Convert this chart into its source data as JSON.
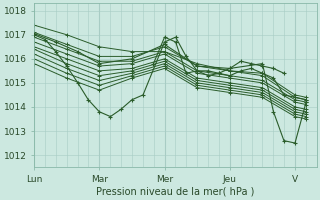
{
  "bg_color": "#cce8e0",
  "grid_color_v": "#a8ccc4",
  "grid_color_h": "#a8ccc4",
  "line_color": "#2a5c2a",
  "xlabel": "Pression niveau de la mer( hPa )",
  "xlim": [
    0,
    4.33
  ],
  "ylim": [
    1011.5,
    1018.3
  ],
  "yticks": [
    1012,
    1013,
    1014,
    1015,
    1016,
    1017,
    1018
  ],
  "xtick_labels": [
    "Lun",
    "Mar",
    "Mer",
    "Jeu",
    "V"
  ],
  "xtick_positions": [
    0,
    1,
    2,
    3,
    4
  ],
  "series": [
    {
      "x": [
        0.0,
        0.5,
        1.0,
        1.5,
        2.0,
        2.5,
        3.0,
        3.5,
        4.0,
        4.17
      ],
      "y": [
        1017.4,
        1017.0,
        1016.5,
        1016.3,
        1016.3,
        1015.8,
        1015.5,
        1015.3,
        1014.4,
        1014.3
      ]
    },
    {
      "x": [
        0.0,
        0.5,
        1.0,
        1.5,
        2.0,
        2.5,
        3.0,
        3.5,
        4.0,
        4.17
      ],
      "y": [
        1017.1,
        1016.6,
        1016.1,
        1016.1,
        1016.5,
        1015.7,
        1015.5,
        1015.4,
        1014.5,
        1014.4
      ]
    },
    {
      "x": [
        0.0,
        0.5,
        1.0,
        1.5,
        2.0,
        2.5,
        3.0,
        3.5,
        4.0,
        4.17
      ],
      "y": [
        1016.9,
        1016.4,
        1015.9,
        1015.9,
        1016.3,
        1015.5,
        1015.3,
        1015.1,
        1014.3,
        1014.2
      ]
    },
    {
      "x": [
        0.0,
        0.5,
        1.0,
        1.5,
        2.0,
        2.5,
        3.0,
        3.5,
        4.0,
        4.17
      ],
      "y": [
        1016.7,
        1016.2,
        1015.7,
        1015.8,
        1016.2,
        1015.4,
        1015.2,
        1015.0,
        1014.2,
        1014.1
      ]
    },
    {
      "x": [
        0.0,
        0.5,
        1.0,
        1.5,
        2.0,
        2.5,
        3.0,
        3.5,
        4.0,
        4.17
      ],
      "y": [
        1016.5,
        1016.0,
        1015.5,
        1015.6,
        1016.0,
        1015.2,
        1015.0,
        1014.8,
        1014.0,
        1013.9
      ]
    },
    {
      "x": [
        0.0,
        0.5,
        1.0,
        1.5,
        2.0,
        2.5,
        3.0,
        3.5,
        4.0,
        4.17
      ],
      "y": [
        1016.4,
        1015.8,
        1015.3,
        1015.5,
        1015.9,
        1015.1,
        1014.9,
        1014.7,
        1013.9,
        1013.8
      ]
    },
    {
      "x": [
        0.0,
        0.5,
        1.0,
        1.5,
        2.0,
        2.5,
        3.0,
        3.5,
        4.0,
        4.17
      ],
      "y": [
        1016.2,
        1015.6,
        1015.1,
        1015.4,
        1015.8,
        1015.0,
        1014.8,
        1014.6,
        1013.8,
        1013.7
      ]
    },
    {
      "x": [
        0.0,
        0.5,
        1.0,
        1.5,
        2.0,
        2.5,
        3.0,
        3.5,
        4.0,
        4.17
      ],
      "y": [
        1016.0,
        1015.4,
        1014.9,
        1015.3,
        1015.7,
        1014.9,
        1014.7,
        1014.5,
        1013.7,
        1013.6
      ]
    },
    {
      "x": [
        0.0,
        0.5,
        1.0,
        1.5,
        2.0,
        2.5,
        3.0,
        3.5,
        4.0,
        4.17
      ],
      "y": [
        1015.8,
        1015.2,
        1014.7,
        1015.2,
        1015.6,
        1014.8,
        1014.6,
        1014.4,
        1013.6,
        1013.5
      ]
    }
  ],
  "dip_series": {
    "x": [
      0.0,
      0.17,
      0.33,
      0.5,
      0.67,
      0.83,
      1.0,
      1.17,
      1.33,
      1.5,
      1.67,
      2.0,
      2.17,
      2.33,
      2.5,
      2.67,
      2.83,
      3.0,
      3.17,
      3.33,
      3.5,
      3.67,
      3.83,
      4.0,
      4.17
    ],
    "y": [
      1017.0,
      1016.8,
      1016.3,
      1015.7,
      1015.0,
      1014.3,
      1013.8,
      1013.6,
      1013.9,
      1014.3,
      1014.5,
      1016.7,
      1016.9,
      1016.1,
      1015.5,
      1015.3,
      1015.4,
      1015.3,
      1015.5,
      1015.6,
      1015.4,
      1015.2,
      1014.5,
      1014.4,
      1014.3
    ]
  },
  "big_dip_series": {
    "x": [
      0.0,
      0.33,
      0.67,
      1.0,
      1.5,
      2.0,
      2.5,
      3.0,
      3.5,
      3.67,
      3.83,
      4.0,
      4.17
    ],
    "y": [
      1017.05,
      1016.7,
      1016.3,
      1015.8,
      1016.0,
      1016.6,
      1015.7,
      1015.6,
      1015.8,
      1013.8,
      1012.6,
      1012.5,
      1014.2
    ]
  },
  "bump_series": {
    "x": [
      1.83,
      2.0,
      2.17,
      2.33,
      2.5,
      2.67,
      2.83,
      3.0,
      3.17,
      3.33,
      3.5,
      3.67,
      3.83
    ],
    "y": [
      1015.8,
      1016.9,
      1016.7,
      1015.4,
      1015.5,
      1015.5,
      1015.4,
      1015.6,
      1015.9,
      1015.8,
      1015.7,
      1015.6,
      1015.4
    ]
  }
}
